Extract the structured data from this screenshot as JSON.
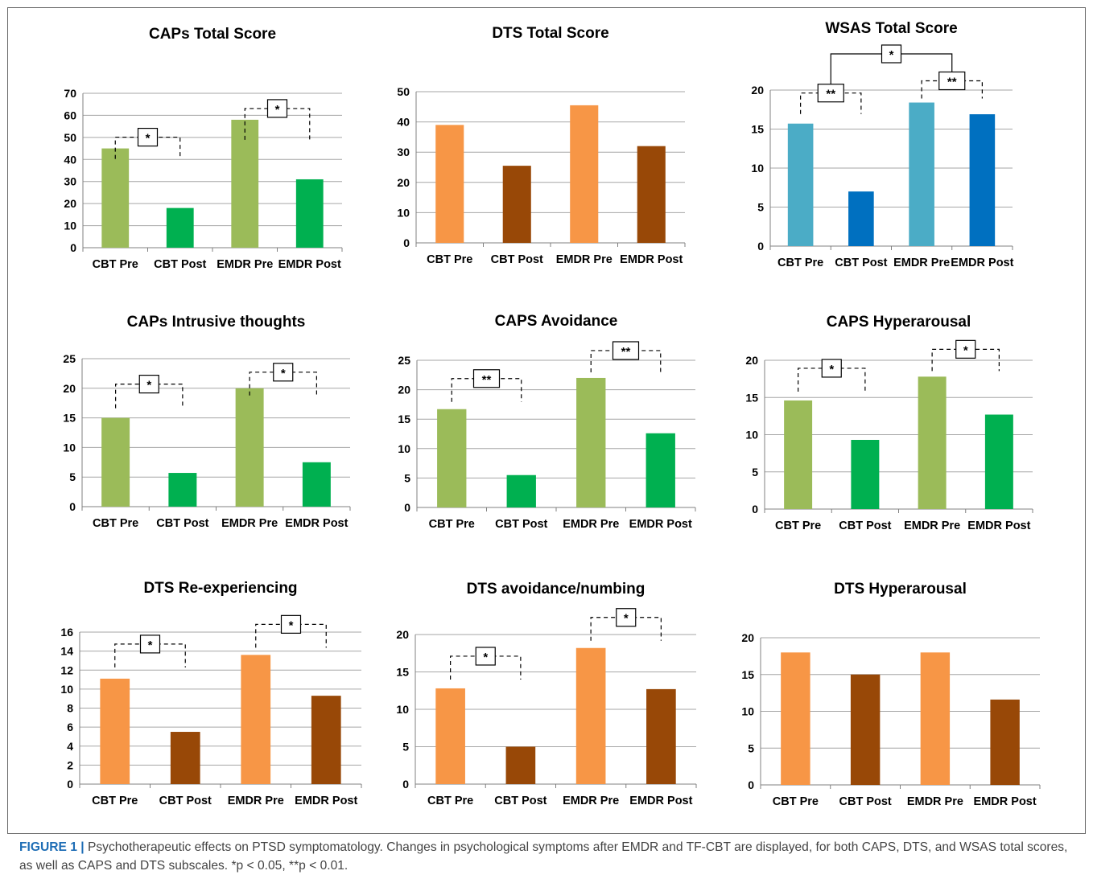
{
  "colors": {
    "light_green": "#9bbb59",
    "green": "#00b050",
    "light_orange": "#f79646",
    "brown": "#984807",
    "light_blue": "#4bacc6",
    "blue": "#0070c0",
    "grid": "#a6a6a6",
    "caption_label": "#1e6db5"
  },
  "caption": {
    "label": "FIGURE 1 |",
    "text": "Psychotherapeutic effects on PTSD symptomatology. Changes in psychological symptoms after EMDR and TF-CBT are displayed, for both CAPS, DTS, and WSAS total scores, as well as CAPS and DTS subscales. *p < 0.05, **p < 0.01."
  },
  "chart_data": [
    {
      "type": "bar",
      "title": "CAPs Total Score",
      "categories": [
        "CBT Pre",
        "CBT Post",
        "EMDR Pre",
        "EMDR Post"
      ],
      "values": [
        45,
        18,
        58,
        31
      ],
      "ylim": [
        0,
        70
      ],
      "yticks": [
        0,
        10,
        20,
        30,
        40,
        50,
        60,
        70
      ],
      "bar_colors": [
        "#9bbb59",
        "#00b050",
        "#9bbb59",
        "#00b050"
      ],
      "significance": [
        {
          "from": 0,
          "to": 1,
          "label": "*"
        },
        {
          "from": 2,
          "to": 3,
          "label": "*"
        }
      ]
    },
    {
      "type": "bar",
      "title": "DTS Total Score",
      "categories": [
        "CBT Pre",
        "CBT Post",
        "EMDR Pre",
        "EMDR Post"
      ],
      "values": [
        39,
        25.5,
        45.5,
        32
      ],
      "ylim": [
        0,
        50
      ],
      "yticks": [
        0,
        10,
        20,
        30,
        40,
        50
      ],
      "bar_colors": [
        "#f79646",
        "#984807",
        "#f79646",
        "#984807"
      ],
      "significance": []
    },
    {
      "type": "bar",
      "title": "WSAS Total Score",
      "categories": [
        "CBT Pre",
        "CBT Post",
        "EMDR Pre",
        "EMDR Post"
      ],
      "values": [
        15.7,
        7,
        18.4,
        16.9
      ],
      "ylim": [
        0,
        20
      ],
      "yticks": [
        0,
        5,
        10,
        15,
        20
      ],
      "bar_colors": [
        "#4bacc6",
        "#0070c0",
        "#4bacc6",
        "#0070c0"
      ],
      "significance": [
        {
          "from": 0,
          "to": 1,
          "label": "**"
        },
        {
          "from": 2,
          "to": 3,
          "label": "**"
        }
      ],
      "group_significance": {
        "label": "*"
      }
    },
    {
      "type": "bar",
      "title": "CAPs Intrusive thoughts",
      "categories": [
        "CBT Pre",
        "CBT Post",
        "EMDR Pre",
        "EMDR Post"
      ],
      "values": [
        15,
        5.7,
        20,
        7.5
      ],
      "ylim": [
        0,
        25
      ],
      "yticks": [
        0,
        5,
        10,
        15,
        20,
        25
      ],
      "bar_colors": [
        "#9bbb59",
        "#00b050",
        "#9bbb59",
        "#00b050"
      ],
      "significance": [
        {
          "from": 0,
          "to": 1,
          "label": "*"
        },
        {
          "from": 2,
          "to": 3,
          "label": "*"
        }
      ]
    },
    {
      "type": "bar",
      "title": "CAPS Avoidance",
      "categories": [
        "CBT Pre",
        "CBT Post",
        "EMDR Pre",
        "EMDR Post"
      ],
      "values": [
        16.7,
        5.5,
        22,
        12.6
      ],
      "ylim": [
        0,
        25
      ],
      "yticks": [
        0,
        5,
        10,
        15,
        20,
        25
      ],
      "bar_colors": [
        "#9bbb59",
        "#00b050",
        "#9bbb59",
        "#00b050"
      ],
      "significance": [
        {
          "from": 0,
          "to": 1,
          "label": "**"
        },
        {
          "from": 2,
          "to": 3,
          "label": "**"
        }
      ]
    },
    {
      "type": "bar",
      "title": "CAPS Hyperarousal",
      "categories": [
        "CBT Pre",
        "CBT Post",
        "EMDR Pre",
        "EMDR Post"
      ],
      "values": [
        14.6,
        9.3,
        17.8,
        12.7
      ],
      "ylim": [
        0,
        20
      ],
      "yticks": [
        0,
        5,
        10,
        15,
        20
      ],
      "bar_colors": [
        "#9bbb59",
        "#00b050",
        "#9bbb59",
        "#00b050"
      ],
      "significance": [
        {
          "from": 0,
          "to": 1,
          "label": "*"
        },
        {
          "from": 2,
          "to": 3,
          "label": "*"
        }
      ]
    },
    {
      "type": "bar",
      "title": "DTS Re-experiencing",
      "categories": [
        "CBT Pre",
        "CBT Post",
        "EMDR Pre",
        "EMDR Post"
      ],
      "values": [
        11.1,
        5.5,
        13.6,
        9.3
      ],
      "ylim": [
        0,
        16
      ],
      "yticks": [
        0,
        2,
        4,
        6,
        8,
        10,
        12,
        14,
        16
      ],
      "bar_colors": [
        "#f79646",
        "#984807",
        "#f79646",
        "#984807"
      ],
      "significance": [
        {
          "from": 0,
          "to": 1,
          "label": "*"
        },
        {
          "from": 2,
          "to": 3,
          "label": "*"
        }
      ]
    },
    {
      "type": "bar",
      "title": "DTS avoidance/numbing",
      "categories": [
        "CBT Pre",
        "CBT Post",
        "EMDR Pre",
        "EMDR Post"
      ],
      "values": [
        12.8,
        5,
        18.2,
        12.7
      ],
      "ylim": [
        0,
        20
      ],
      "yticks": [
        0,
        5,
        10,
        15,
        20
      ],
      "bar_colors": [
        "#f79646",
        "#984807",
        "#f79646",
        "#984807"
      ],
      "significance": [
        {
          "from": 0,
          "to": 1,
          "label": "*"
        },
        {
          "from": 2,
          "to": 3,
          "label": "*"
        }
      ]
    },
    {
      "type": "bar",
      "title": "DTS Hyperarousal",
      "categories": [
        "CBT Pre",
        "CBT Post",
        "EMDR Pre",
        "EMDR Post"
      ],
      "values": [
        18,
        15,
        18,
        11.6
      ],
      "ylim": [
        0,
        20
      ],
      "yticks": [
        0,
        5,
        10,
        15,
        20
      ],
      "bar_colors": [
        "#f79646",
        "#984807",
        "#f79646",
        "#984807"
      ],
      "significance": []
    }
  ]
}
